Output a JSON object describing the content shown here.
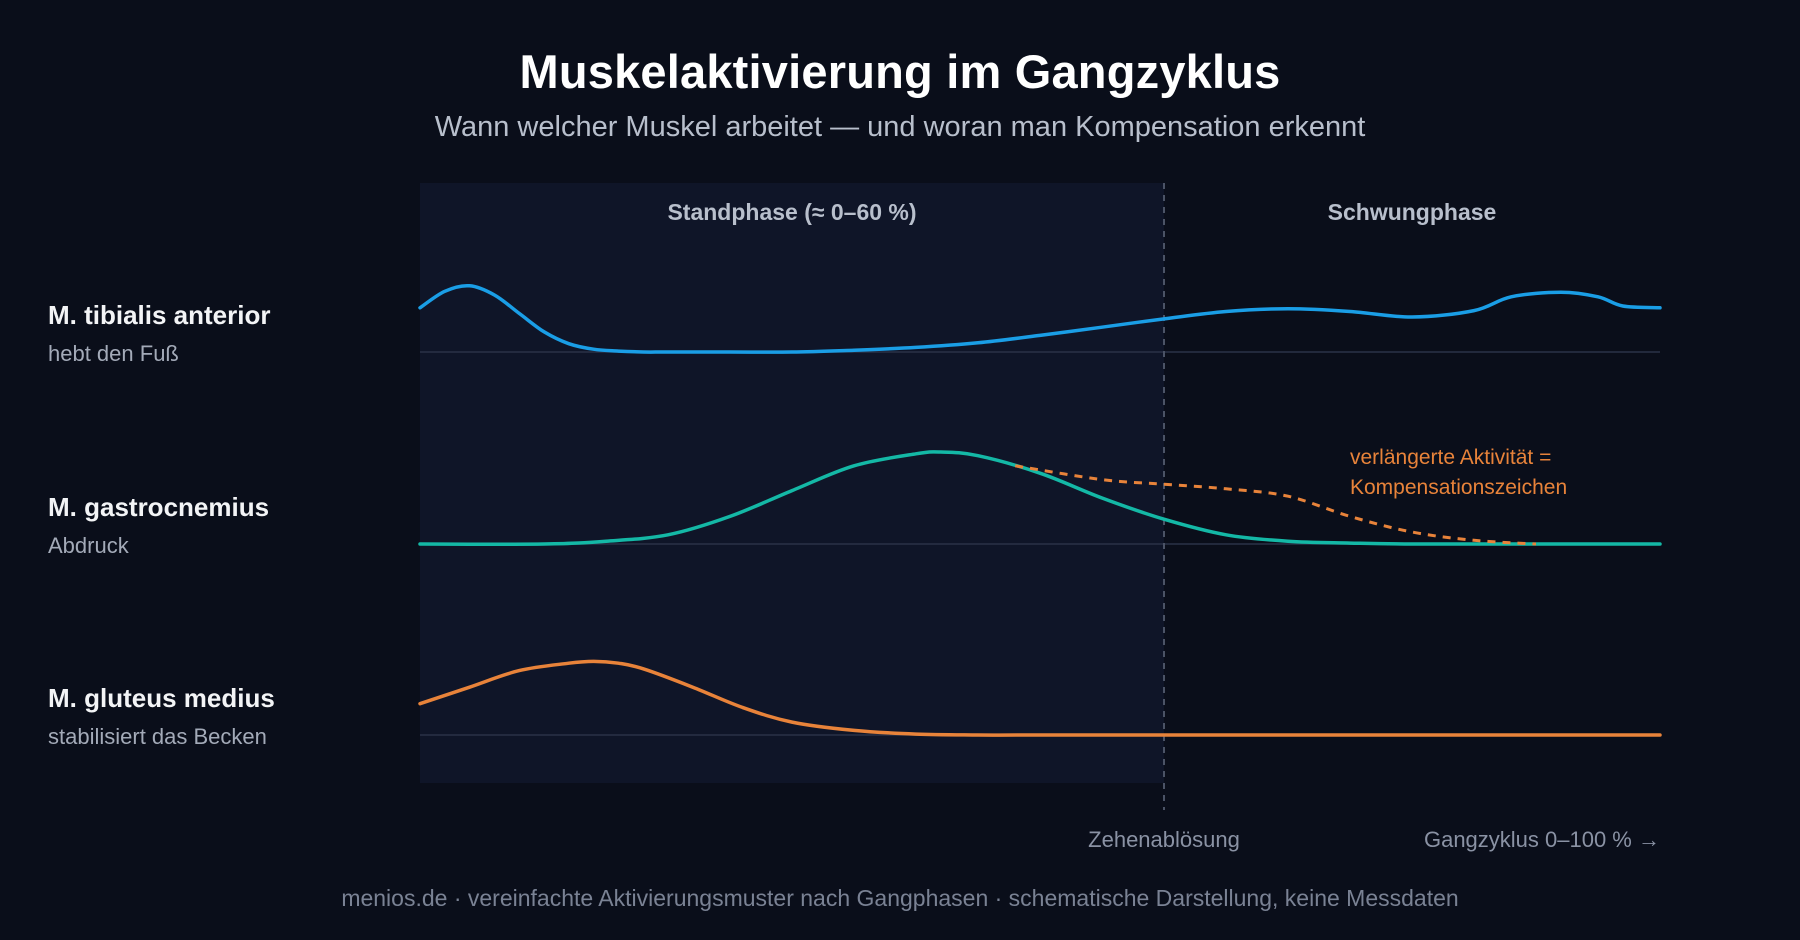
{
  "header": {
    "title": "Muskelaktivierung im Gangzyklus",
    "subtitle": "Wann welcher Muskel arbeitet — und woran man Kompensation erkennt"
  },
  "muscles": [
    {
      "name": "M. tibialis anterior",
      "desc": "hebt den Fuß"
    },
    {
      "name": "M. gastrocnemius",
      "desc": "Abdruck"
    },
    {
      "name": "M. gluteus medius",
      "desc": "stabilisiert das Becken"
    }
  ],
  "caption": "menios.de · vereinfachte Aktivierungsmuster nach Gangphasen · schematische Darstellung, keine Messdaten",
  "chart_data": {
    "type": "line",
    "x_label": "Gangzyklus 0–100 % →",
    "xlim": [
      0,
      100
    ],
    "ylim": [
      0,
      1
    ],
    "phases": [
      {
        "label": "Standphase (≈ 0–60 %)",
        "start": 0,
        "end": 60
      },
      {
        "label": "Schwungphase",
        "start": 60,
        "end": 100
      }
    ],
    "toe_off": {
      "x": 60,
      "label": "Zehenablösung"
    },
    "colors": {
      "tibialis": "#1a9ee6",
      "gastro": "#14b8a6",
      "gluteus": "#e8833a"
    },
    "series": [
      {
        "key": "tibialis",
        "x": [
          0,
          2,
          4,
          6,
          8,
          10,
          12,
          14,
          16,
          18,
          20,
          25,
          30,
          35,
          40,
          45,
          50,
          55,
          60,
          65,
          70,
          75,
          80,
          85,
          88,
          92,
          95,
          97,
          100
        ],
        "y": [
          0.48,
          0.66,
          0.72,
          0.62,
          0.42,
          0.22,
          0.09,
          0.03,
          0.01,
          0.0,
          0.0,
          0.0,
          0.0,
          0.02,
          0.05,
          0.1,
          0.18,
          0.27,
          0.36,
          0.44,
          0.47,
          0.44,
          0.38,
          0.45,
          0.6,
          0.65,
          0.6,
          0.5,
          0.48
        ]
      },
      {
        "key": "gastro",
        "x": [
          0,
          10,
          15,
          20,
          25,
          30,
          35,
          40,
          42,
          45,
          50,
          55,
          60,
          65,
          70,
          75,
          80,
          90,
          100
        ],
        "y": [
          0.0,
          0.0,
          0.03,
          0.1,
          0.3,
          0.58,
          0.85,
          0.98,
          1.0,
          0.96,
          0.77,
          0.5,
          0.27,
          0.1,
          0.03,
          0.01,
          0.0,
          0.0,
          0.0
        ]
      },
      {
        "key": "gluteus",
        "x": [
          0,
          4,
          8,
          12,
          14,
          16,
          18,
          22,
          26,
          30,
          35,
          40,
          45,
          50,
          55,
          60,
          70,
          80,
          90,
          100
        ],
        "y": [
          0.34,
          0.52,
          0.7,
          0.78,
          0.8,
          0.78,
          0.72,
          0.52,
          0.3,
          0.14,
          0.05,
          0.01,
          0.0,
          0.0,
          0.0,
          0.0,
          0.0,
          0.0,
          0.0,
          0.0
        ]
      }
    ],
    "compensation": {
      "row": "gastro",
      "x": [
        48,
        55,
        60,
        65,
        70,
        75,
        80,
        85,
        90
      ],
      "y": [
        0.85,
        0.7,
        0.65,
        0.6,
        0.52,
        0.3,
        0.13,
        0.04,
        0.0
      ],
      "label_lines": [
        "verlängerte Aktivität =",
        "Kompensationszeichen"
      ]
    }
  }
}
